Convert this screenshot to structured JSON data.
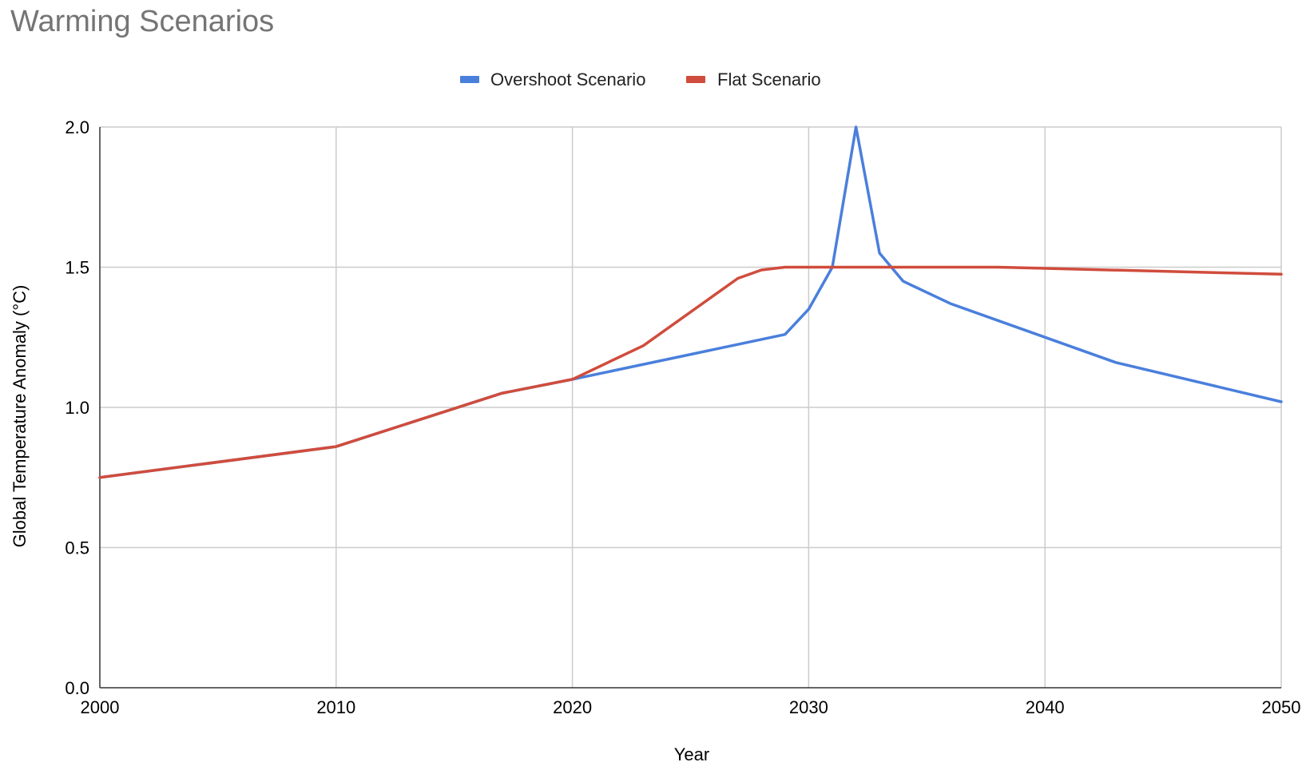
{
  "chart_data": {
    "type": "line",
    "title": "Warming Scenarios",
    "xlabel": "Year",
    "ylabel": "Global Temperature Anomaly (°C)",
    "xlim": [
      2000,
      2050
    ],
    "ylim": [
      0,
      2
    ],
    "x_ticks": [
      "2000",
      "2010",
      "2020",
      "2030",
      "2040",
      "2050"
    ],
    "y_ticks": [
      "0.0",
      "0.5",
      "1.0",
      "1.5",
      "2.0"
    ],
    "grid": true,
    "legend_position": "top",
    "series": [
      {
        "name": "Overshoot Scenario",
        "color": "#4a7fdc",
        "points": [
          [
            2000,
            0.75
          ],
          [
            2010,
            0.86
          ],
          [
            2017,
            1.05
          ],
          [
            2020,
            1.1
          ],
          [
            2029,
            1.26
          ],
          [
            2030,
            1.35
          ],
          [
            2031,
            1.5
          ],
          [
            2032,
            2.0
          ],
          [
            2033,
            1.55
          ],
          [
            2034,
            1.45
          ],
          [
            2036,
            1.37
          ],
          [
            2043,
            1.16
          ],
          [
            2050,
            1.02
          ]
        ]
      },
      {
        "name": "Flat Scenario",
        "color": "#d04c3c",
        "points": [
          [
            2000,
            0.75
          ],
          [
            2010,
            0.86
          ],
          [
            2017,
            1.05
          ],
          [
            2020,
            1.1
          ],
          [
            2023,
            1.22
          ],
          [
            2027,
            1.46
          ],
          [
            2028,
            1.49
          ],
          [
            2029,
            1.5
          ],
          [
            2038,
            1.5
          ],
          [
            2050,
            1.475
          ]
        ]
      }
    ]
  }
}
